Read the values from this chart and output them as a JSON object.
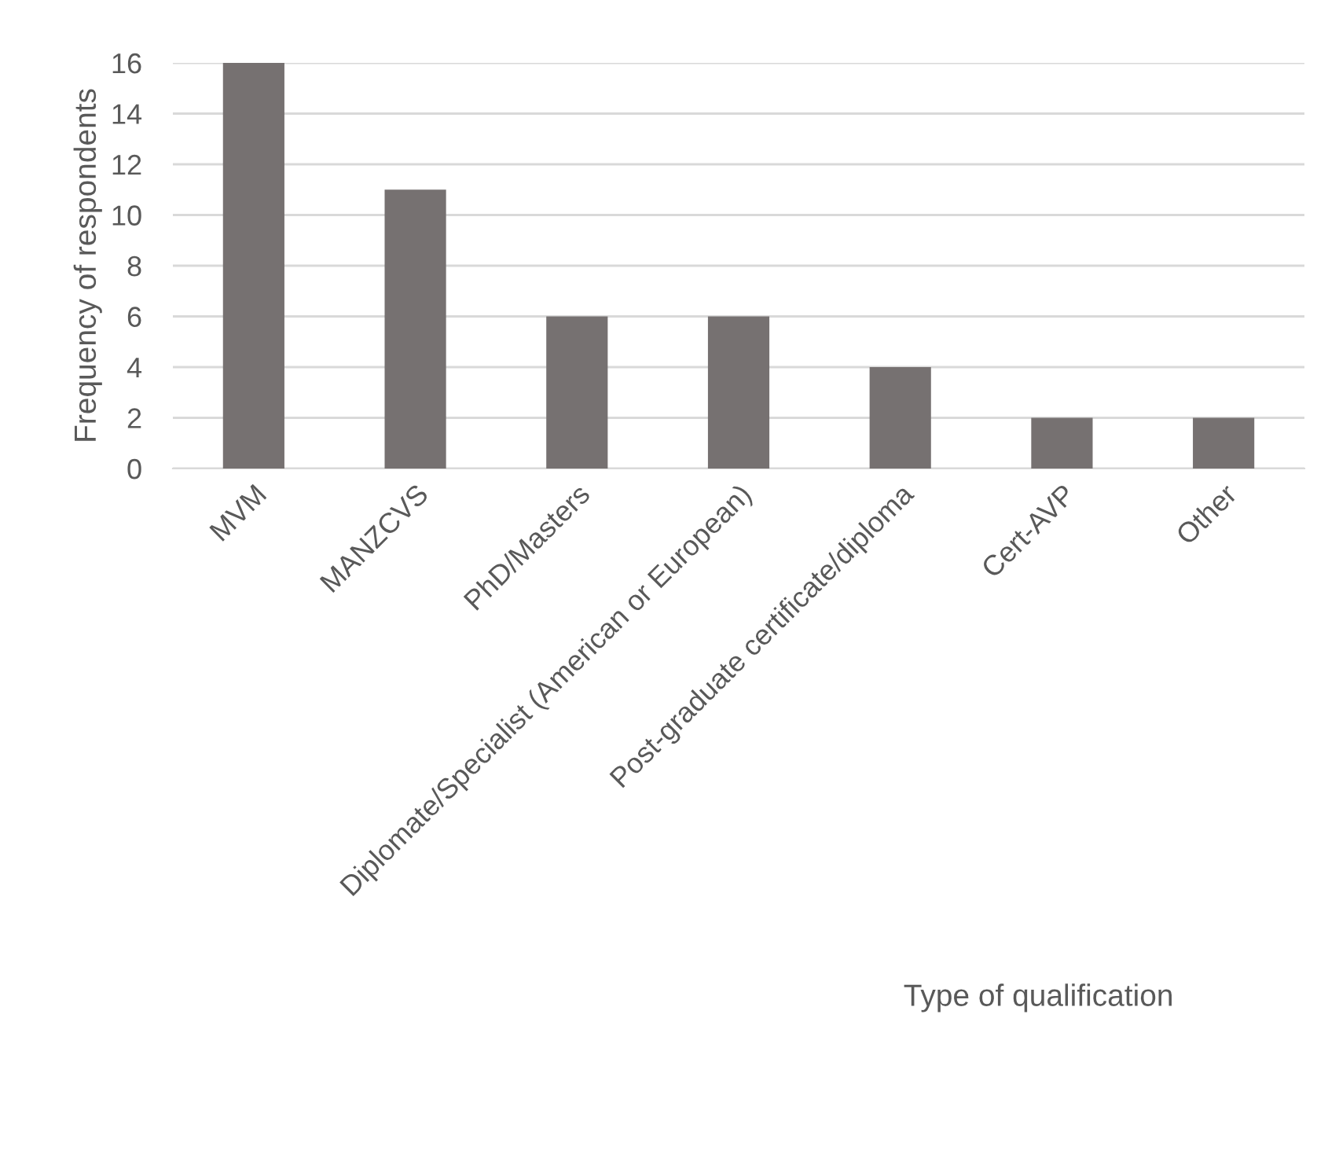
{
  "chart_data": {
    "type": "bar",
    "xlabel": "Type of qualification",
    "ylabel": "Frequency of respondents",
    "categories": [
      "MVM",
      "MANZCVS",
      "PhD/Masters",
      "Diplomate/Specialist (American or European)",
      "Post-graduate certificate/diploma",
      "Cert-AVP",
      "Other"
    ],
    "values": [
      16,
      11,
      6,
      6,
      4,
      2,
      2
    ],
    "color": "#767171",
    "ylim": [
      0,
      16
    ],
    "yticks": [
      0,
      2,
      4,
      6,
      8,
      10,
      12,
      14,
      16
    ],
    "grid": "y"
  }
}
